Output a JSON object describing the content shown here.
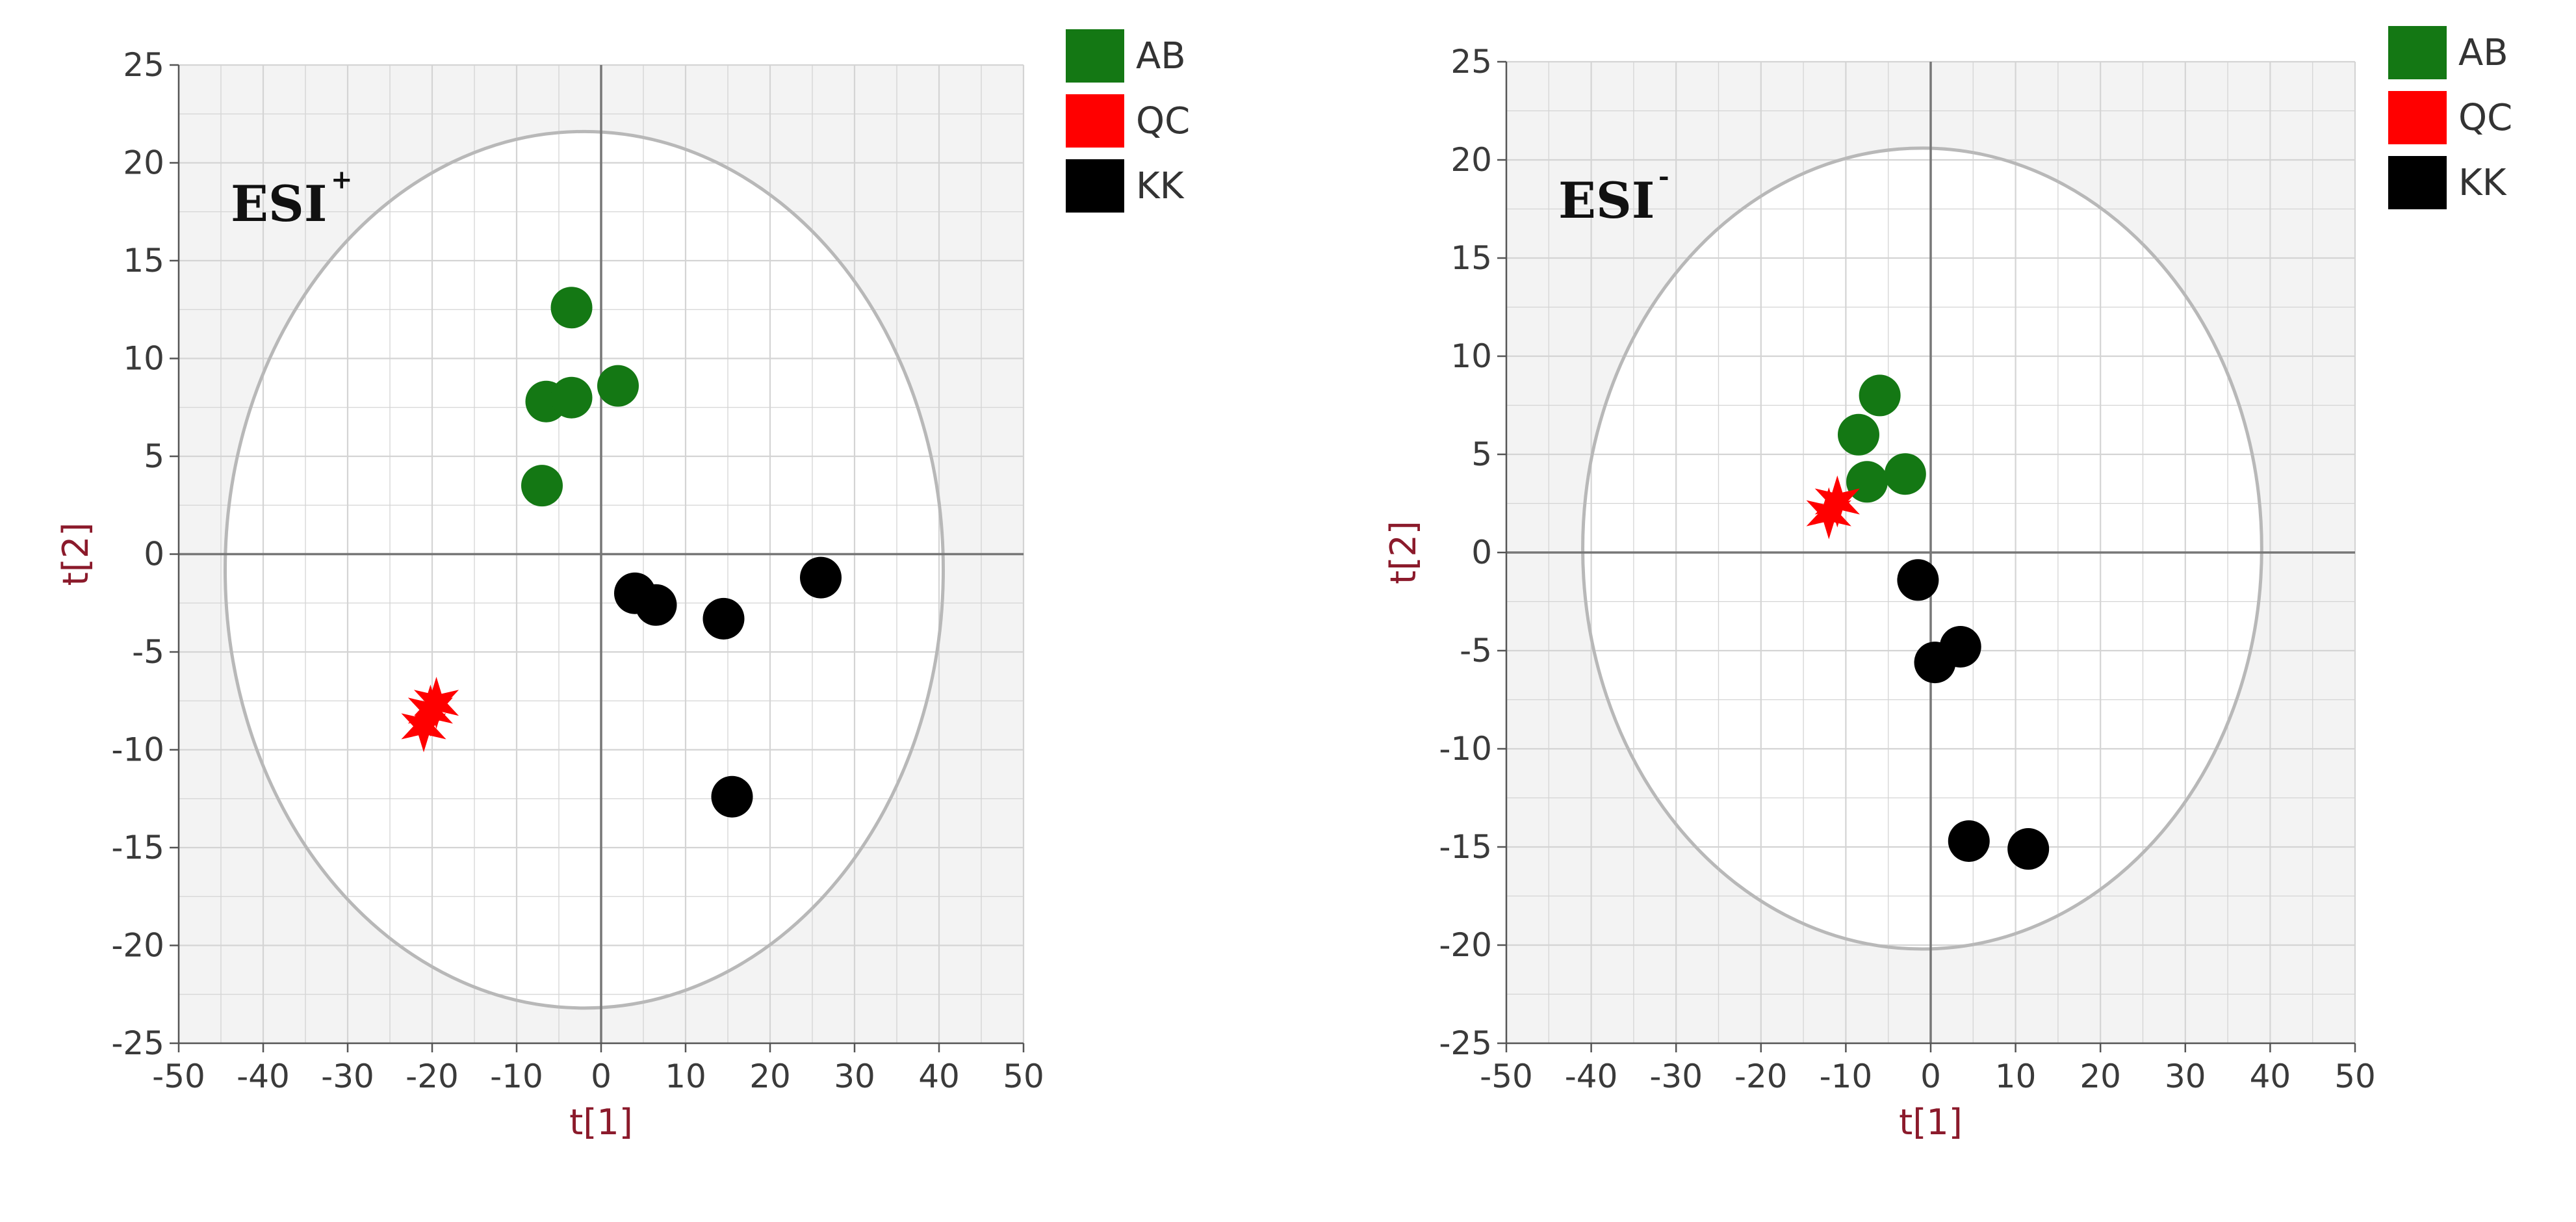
{
  "colors": {
    "AB": "#147814",
    "QC": "#ff0000",
    "KK": "#000000",
    "shade": "#f3f3f3",
    "grid": "#d4d4d4",
    "ellipse": "#b8b8b8",
    "axis_text": "#3a3a3a",
    "axis_label": "#8b1a2b"
  },
  "legend": {
    "position": "right-top",
    "items": [
      {
        "name": "AB",
        "color": "#147814"
      },
      {
        "name": "QC",
        "color": "#ff0000"
      },
      {
        "name": "KK",
        "color": "#000000"
      }
    ]
  },
  "chart_data": [
    {
      "type": "scatter",
      "panel_label": "ESI",
      "panel_sup": "+",
      "xlabel": "t[1]",
      "ylabel": "t[2]",
      "xlim": [
        -50,
        50
      ],
      "ylim": [
        -25,
        25
      ],
      "xticks": [
        -50,
        -40,
        -30,
        -20,
        -10,
        0,
        10,
        20,
        30,
        40,
        50
      ],
      "yticks": [
        25,
        20,
        15,
        10,
        5,
        0,
        -5,
        -10,
        -15,
        -20,
        -25
      ],
      "grid": true,
      "ellipse": {
        "cx": -2,
        "cy": -0.8,
        "rx": 42.5,
        "ry": 22.4
      },
      "series": [
        {
          "name": "AB",
          "marker": "circle",
          "points": [
            [
              -3.5,
              12.6
            ],
            [
              -6.5,
              7.8
            ],
            [
              -3.5,
              8.0
            ],
            [
              2.0,
              8.6
            ],
            [
              -7.0,
              3.5
            ]
          ]
        },
        {
          "name": "QC",
          "marker": "star",
          "points": [
            [
              -19.5,
              -7.6
            ],
            [
              -21.0,
              -8.8
            ],
            [
              -20.2,
              -8.0
            ]
          ]
        },
        {
          "name": "KK",
          "marker": "circle",
          "points": [
            [
              4.0,
              -2.0
            ],
            [
              6.5,
              -2.6
            ],
            [
              14.5,
              -3.3
            ],
            [
              26.0,
              -1.2
            ],
            [
              15.5,
              -12.4
            ]
          ]
        }
      ]
    },
    {
      "type": "scatter",
      "panel_label": "ESI",
      "panel_sup": "-",
      "xlabel": "t[1]",
      "ylabel": "t[2]",
      "xlim": [
        -50,
        50
      ],
      "ylim": [
        -25,
        25
      ],
      "xticks": [
        -50,
        -40,
        -30,
        -20,
        -10,
        0,
        10,
        20,
        30,
        40,
        50
      ],
      "yticks": [
        25,
        20,
        15,
        10,
        5,
        0,
        -5,
        -10,
        -15,
        -20,
        -25
      ],
      "grid": true,
      "ellipse": {
        "cx": -1,
        "cy": 0.2,
        "rx": 40.0,
        "ry": 20.4
      },
      "series": [
        {
          "name": "AB",
          "marker": "circle",
          "points": [
            [
              -6.0,
              8.0
            ],
            [
              -8.5,
              6.0
            ],
            [
              -7.5,
              3.6
            ],
            [
              -3.0,
              4.0
            ]
          ]
        },
        {
          "name": "QC",
          "marker": "star",
          "points": [
            [
              -12.0,
              2.0
            ],
            [
              -11.0,
              2.6
            ]
          ]
        },
        {
          "name": "KK",
          "marker": "circle",
          "points": [
            [
              -1.5,
              -1.4
            ],
            [
              3.5,
              -4.8
            ],
            [
              0.5,
              -5.6
            ],
            [
              4.5,
              -14.7
            ],
            [
              11.5,
              -15.1
            ]
          ]
        }
      ]
    }
  ]
}
